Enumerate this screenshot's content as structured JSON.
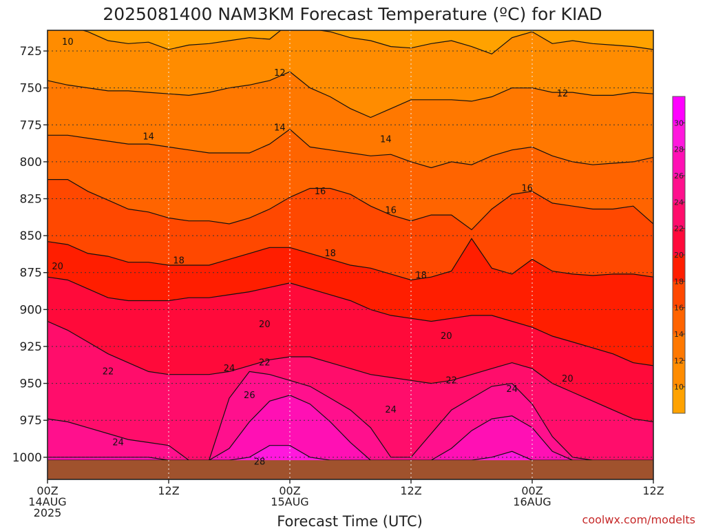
{
  "chart_data": {
    "type": "heatmap",
    "title": "2025081400 NAM3KM Forecast Temperature (ºC) for KIAD",
    "xlabel": "Forecast Time (UTC)",
    "ylabel": "",
    "credit": "coolwx.com/modelts",
    "y_axis": {
      "unit": "hPa",
      "direction": "pressure decreasing upward",
      "range": [
        1015,
        711
      ],
      "ticks": [
        725,
        750,
        775,
        800,
        825,
        850,
        875,
        900,
        925,
        950,
        975,
        1000
      ]
    },
    "x_axis": {
      "unit": "forecast hour",
      "range": [
        0,
        60
      ],
      "ticks": [
        {
          "hour": 0,
          "lines": [
            "00Z",
            "14AUG",
            "2025"
          ]
        },
        {
          "hour": 12,
          "lines": [
            "12Z"
          ]
        },
        {
          "hour": 24,
          "lines": [
            "00Z",
            "15AUG"
          ]
        },
        {
          "hour": 36,
          "lines": [
            "12Z"
          ]
        },
        {
          "hour": 48,
          "lines": [
            "00Z",
            "16AUG"
          ]
        },
        {
          "hour": 60,
          "lines": [
            "12Z"
          ]
        }
      ]
    },
    "grid": true,
    "legend": "right",
    "colorbar": {
      "levels": [
        10,
        12,
        14,
        16,
        18,
        20,
        22,
        24,
        26,
        28,
        30
      ],
      "colors": [
        "#ffa200",
        "#ff8c00",
        "#ff7800",
        "#ff6400",
        "#ff4800",
        "#ff1e00",
        "#ff0a3a",
        "#ff0d6b",
        "#ff108d",
        "#ff10b4",
        "#ff18dd",
        "#ff00ff"
      ]
    },
    "isotherms": [
      {
        "level": 10,
        "labels": [
          {
            "x": 2.0,
            "p": 719
          }
        ]
      },
      {
        "level": 12,
        "labels": [
          {
            "x": 23.0,
            "p": 740
          },
          {
            "x": 51.0,
            "p": 754
          }
        ]
      },
      {
        "level": 14,
        "labels": [
          {
            "x": 10.0,
            "p": 783
          },
          {
            "x": 23.0,
            "p": 777
          },
          {
            "x": 33.5,
            "p": 785
          }
        ]
      },
      {
        "level": 16,
        "labels": [
          {
            "x": 27.0,
            "p": 820
          },
          {
            "x": 34.0,
            "p": 833
          },
          {
            "x": 47.5,
            "p": 818
          }
        ]
      },
      {
        "level": 18,
        "labels": [
          {
            "x": 13.0,
            "p": 867
          },
          {
            "x": 28.0,
            "p": 862
          },
          {
            "x": 37.0,
            "p": 877
          }
        ]
      },
      {
        "level": 20,
        "labels": [
          {
            "x": 1.0,
            "p": 871
          },
          {
            "x": 21.5,
            "p": 910
          },
          {
            "x": 39.5,
            "p": 918
          },
          {
            "x": 51.5,
            "p": 947
          }
        ]
      },
      {
        "level": 22,
        "labels": [
          {
            "x": 6.0,
            "p": 942
          },
          {
            "x": 21.5,
            "p": 936
          },
          {
            "x": 40.0,
            "p": 948
          }
        ]
      },
      {
        "level": 24,
        "labels": [
          {
            "x": 7.0,
            "p": 990
          },
          {
            "x": 18.0,
            "p": 940
          },
          {
            "x": 34.0,
            "p": 968
          },
          {
            "x": 46.0,
            "p": 954
          }
        ]
      },
      {
        "level": 26,
        "labels": [
          {
            "x": 20.0,
            "p": 958
          }
        ]
      },
      {
        "level": 28,
        "labels": [
          {
            "x": 21.0,
            "p": 1003
          }
        ]
      }
    ],
    "ground_pressure_hpa": 1002
  }
}
